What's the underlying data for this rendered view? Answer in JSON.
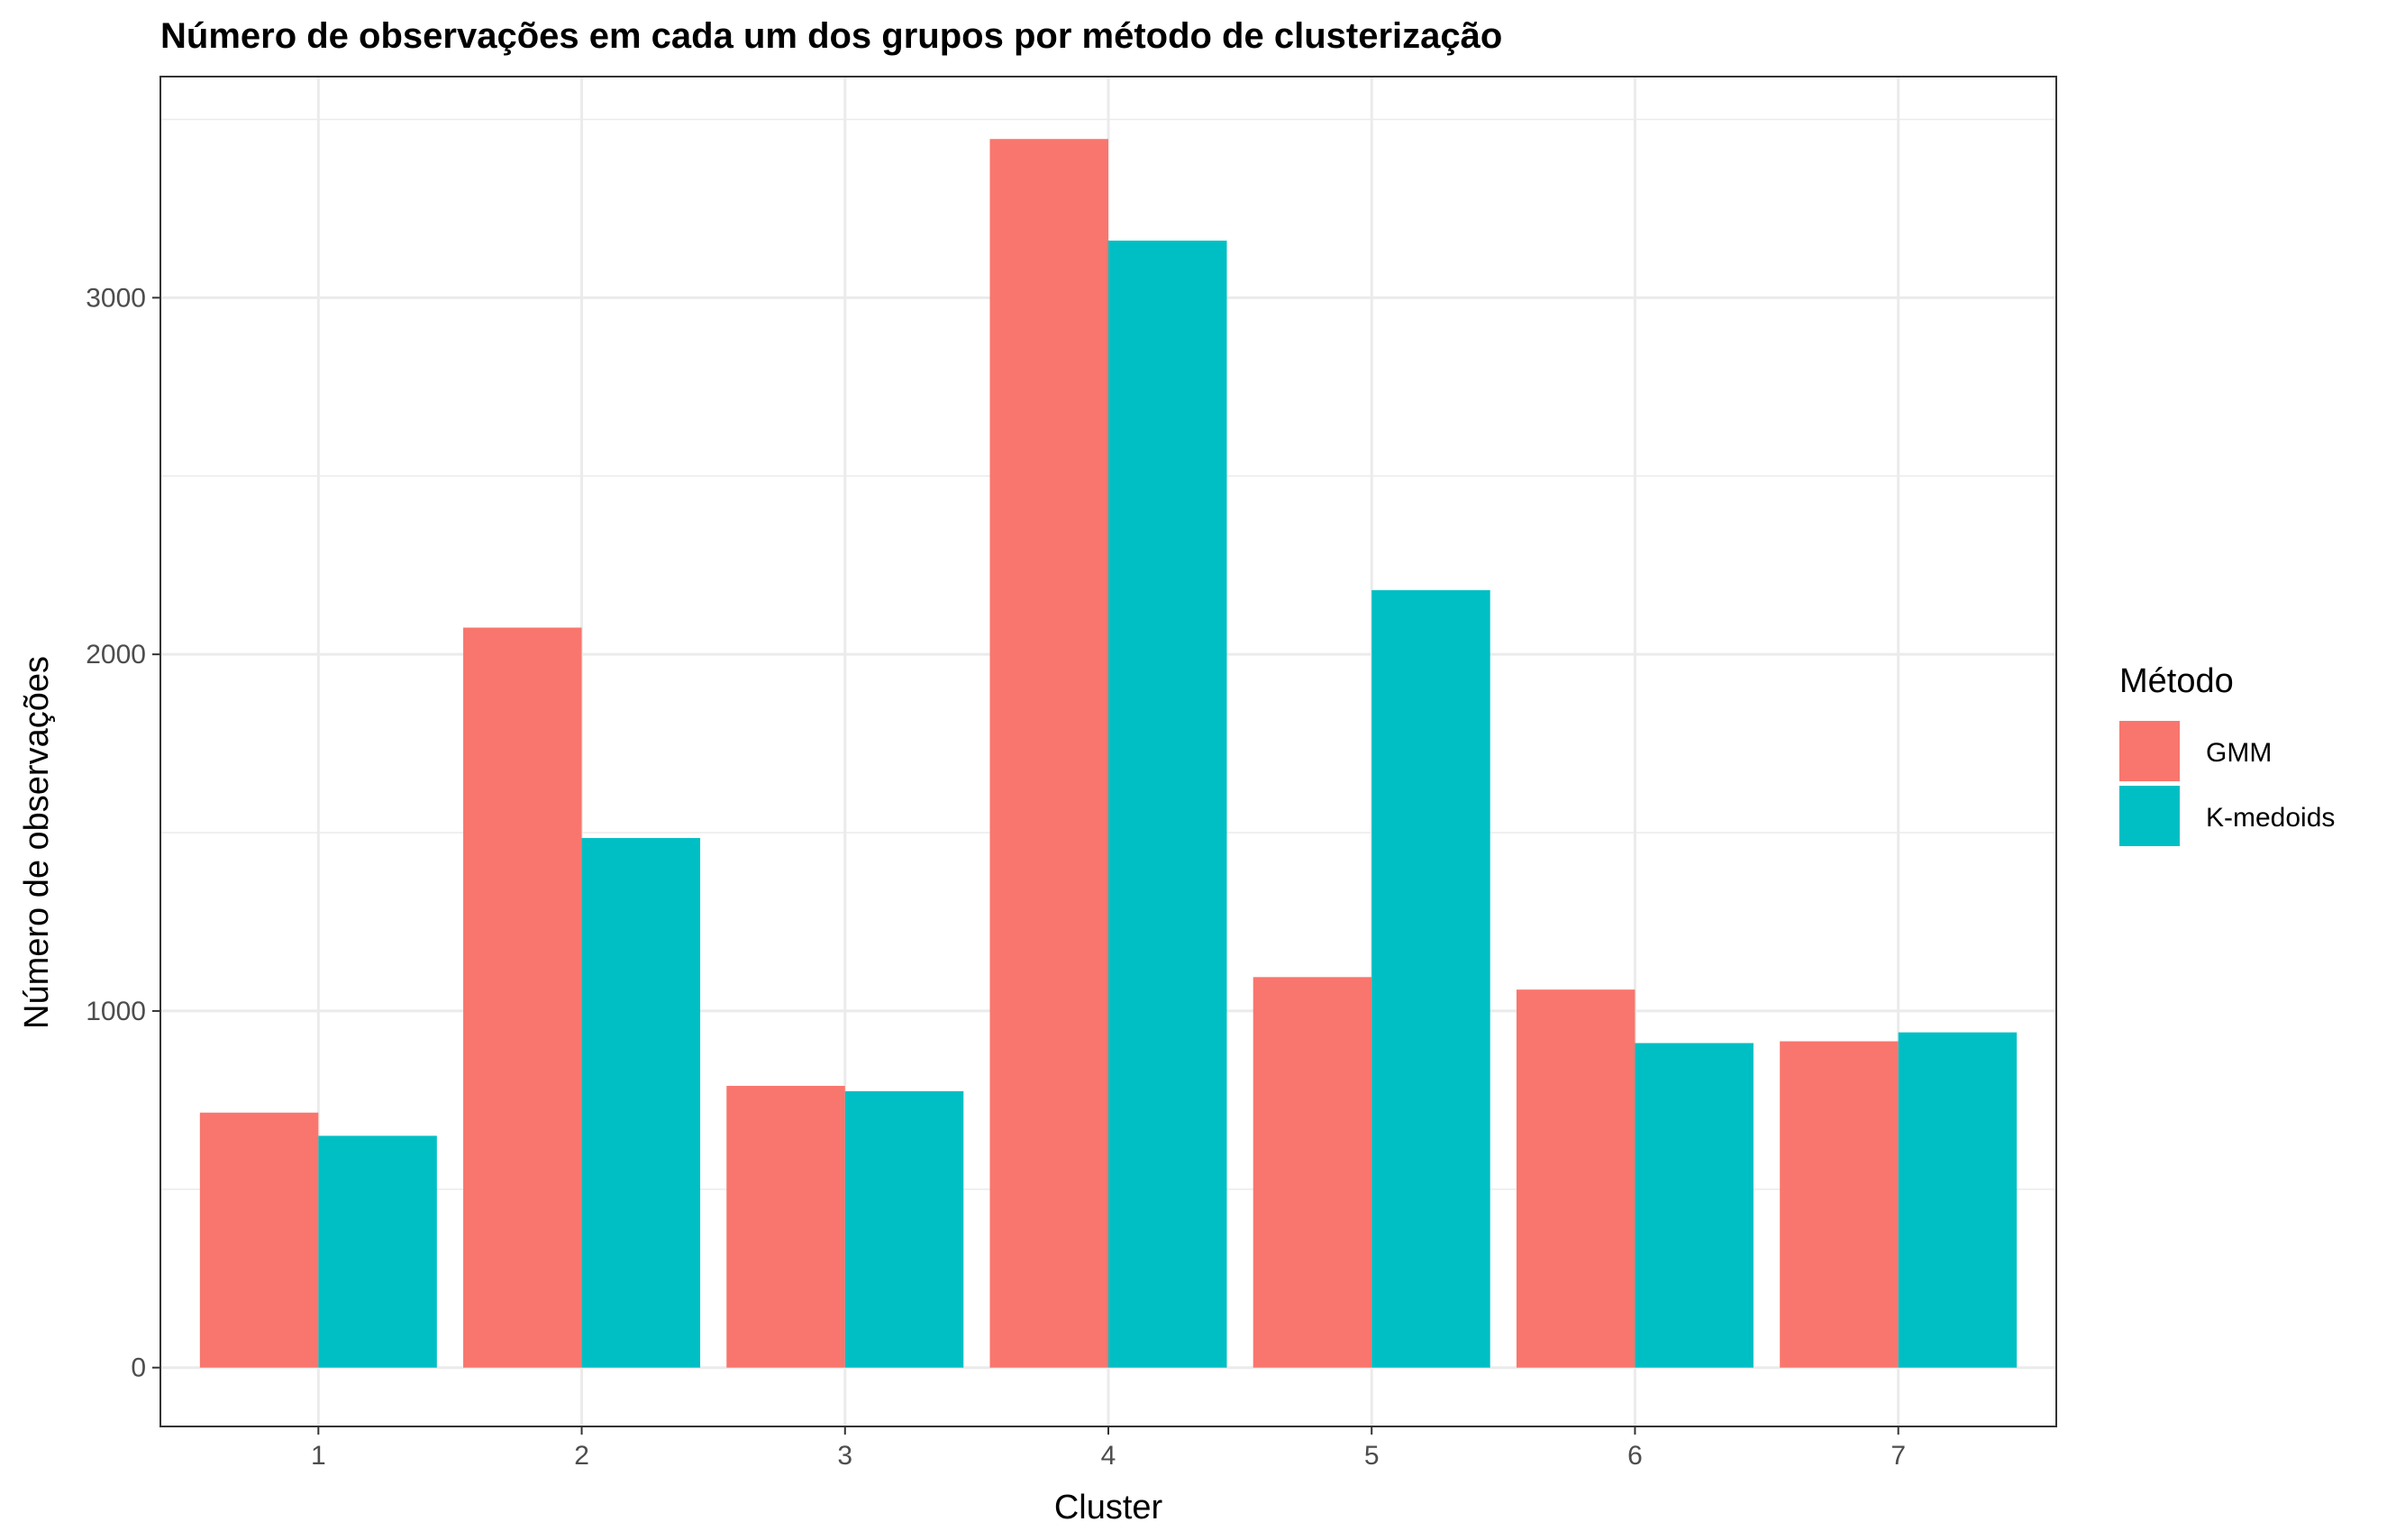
{
  "chart_data": {
    "type": "bar",
    "title": "Número de observações em cada um dos grupos por método de clusterização",
    "xlabel": "Cluster",
    "ylabel": "Número de observações",
    "categories": [
      "1",
      "2",
      "3",
      "4",
      "5",
      "6",
      "7"
    ],
    "series": [
      {
        "name": "GMM",
        "color": "#F8766D",
        "values": [
          715,
          2075,
          790,
          3445,
          1095,
          1060,
          915
        ]
      },
      {
        "name": "K-medoids",
        "color": "#00BFC4",
        "values": [
          650,
          1485,
          775,
          3160,
          2180,
          910,
          940
        ]
      }
    ],
    "ylim": [
      -165,
      3620
    ],
    "yticks": [
      0,
      1000,
      2000,
      3000
    ],
    "grid": true,
    "legend": {
      "title": "Método",
      "position": "right"
    }
  }
}
